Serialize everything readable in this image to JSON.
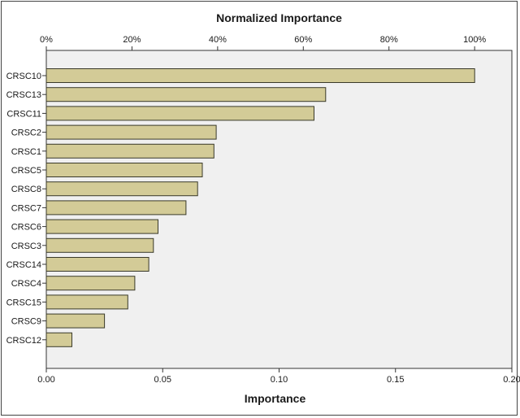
{
  "chart_data": {
    "type": "bar",
    "orientation": "horizontal",
    "title": "Normalized Importance",
    "xlabel": "Importance",
    "ylabel": "",
    "xlim": [
      0,
      0.2
    ],
    "x_ticks": [
      "0.00",
      "0.05",
      "0.10",
      "0.15",
      "0.20"
    ],
    "top_axis_ticks": [
      "0%",
      "20%",
      "40%",
      "60%",
      "80%",
      "100%"
    ],
    "top_axis_max_pct": 100,
    "categories": [
      "CRSC10",
      "CRSC13",
      "CRSC11",
      "CRSC2",
      "CRSC1",
      "CRSC5",
      "CRSC8",
      "CRSC7",
      "CRSC6",
      "CRSC3",
      "CRSC14",
      "CRSC4",
      "CRSC15",
      "CRSC9",
      "CRSC12"
    ],
    "values": [
      0.184,
      0.12,
      0.115,
      0.073,
      0.072,
      0.067,
      0.065,
      0.06,
      0.048,
      0.046,
      0.044,
      0.038,
      0.035,
      0.025,
      0.011
    ],
    "grid": false,
    "colors": {
      "bar_fill": "#d3cb97",
      "bar_stroke": "#3a3a2a",
      "plot_bg": "#f0f0f0",
      "axis": "#333333"
    }
  }
}
